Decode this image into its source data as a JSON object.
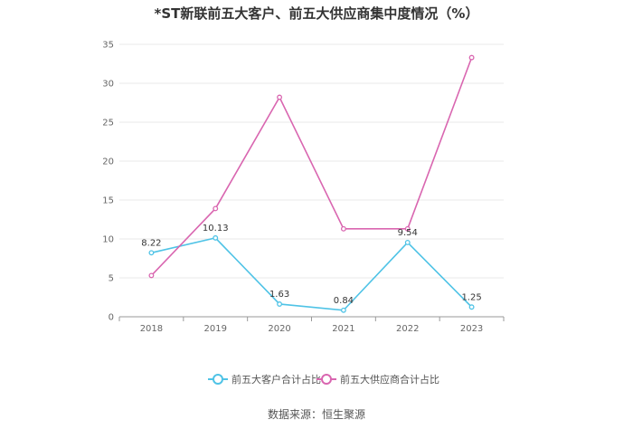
{
  "title": "*ST新联前五大客户、前五大供应商集中度情况（%）",
  "source": "数据来源：恒生聚源",
  "chart_data": {
    "type": "line",
    "x": [
      "2018",
      "2019",
      "2020",
      "2021",
      "2022",
      "2023"
    ],
    "ylim": [
      0,
      35
    ],
    "yticks": [
      0,
      5,
      10,
      15,
      20,
      25,
      30,
      35
    ],
    "grid": true,
    "legend_position": "bottom",
    "series": [
      {
        "name": "前五大客户合计占比",
        "color": "#4fc3e6",
        "values": [
          8.22,
          10.13,
          1.63,
          0.84,
          9.54,
          1.25
        ],
        "labels": [
          "8.22",
          "10.13",
          "1.63",
          "0.84",
          "9.54",
          "1.25"
        ]
      },
      {
        "name": "前五大供应商合计占比",
        "color": "#d966b0",
        "values": [
          5.3,
          13.9,
          28.2,
          11.3,
          11.3,
          33.3
        ]
      }
    ]
  }
}
